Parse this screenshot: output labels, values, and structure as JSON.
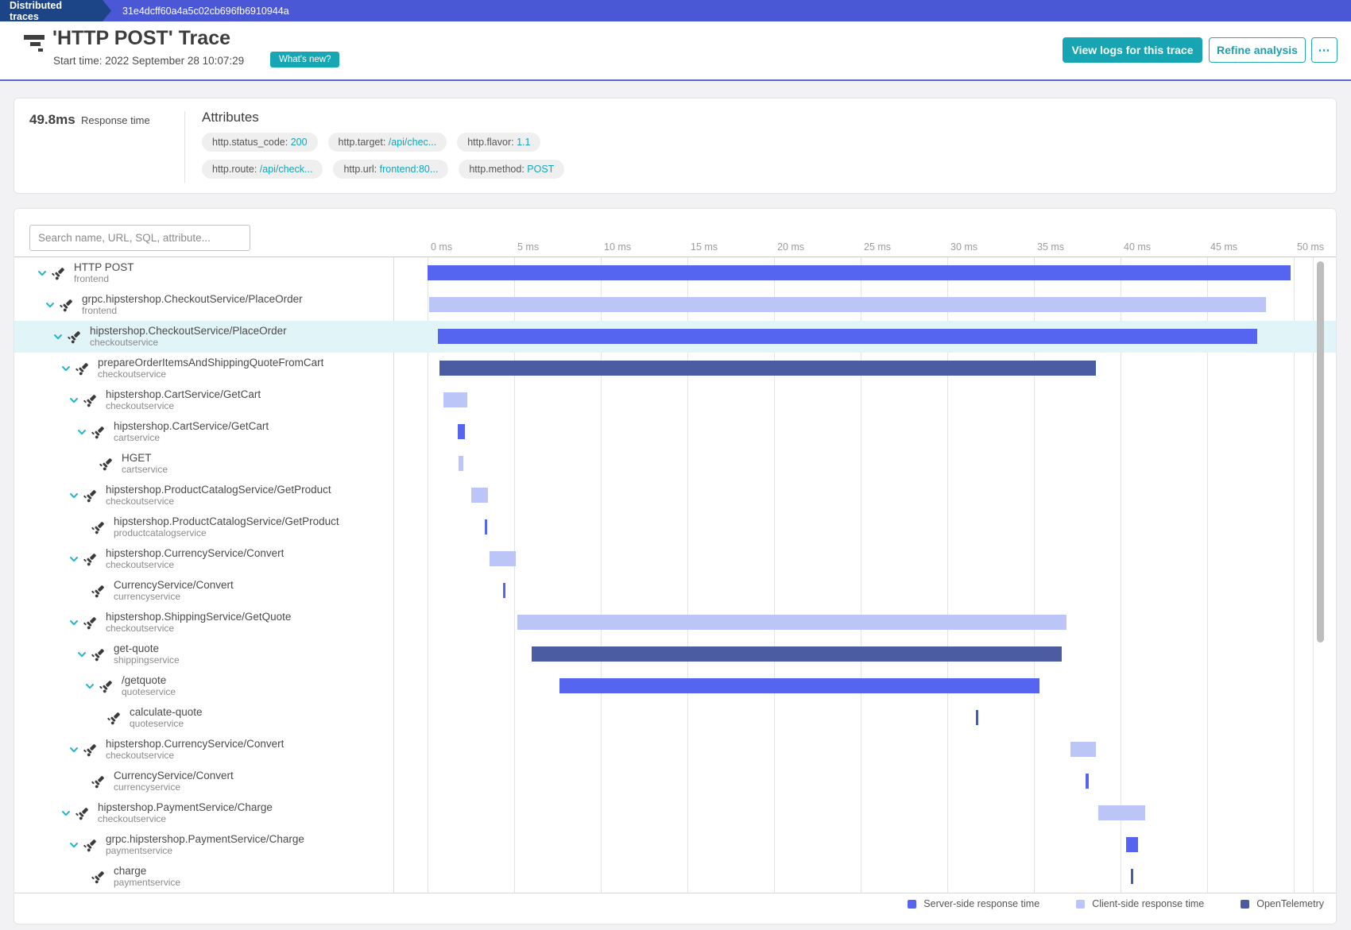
{
  "topbar": {
    "breadcrumb": "Distributed traces",
    "trace_id": "31e4dcff60a4a5c02cb696fb6910944a"
  },
  "header": {
    "title": "'HTTP POST' Trace",
    "start_time": "Start time: 2022 September 28 10:07:29",
    "whats_new_label": "What's new?",
    "view_logs_label": "View logs for this trace",
    "refine_label": "Refine analysis",
    "more_label": "⋯"
  },
  "summary": {
    "response_time": "49.8ms",
    "response_time_label": "Response time",
    "attributes_title": "Attributes",
    "pill_rows": [
      [
        {
          "label": "http.status_code",
          "value": "200"
        },
        {
          "label": "http.target",
          "value": "/api/chec..."
        },
        {
          "label": "http.flavor",
          "value": "1.1"
        }
      ],
      [
        {
          "label": "http.route",
          "value": "/api/check..."
        },
        {
          "label": "http.url",
          "value": "frontend:80..."
        },
        {
          "label": "http.method",
          "value": "POST"
        }
      ]
    ]
  },
  "search": {
    "placeholder": "Search name, URL, SQL, attribute..."
  },
  "chart_data": {
    "type": "gantt",
    "time_unit": "ms",
    "axis_range_ms": [
      0,
      50
    ],
    "axis_ticks": [
      "0 ms",
      "5 ms",
      "10 ms",
      "15 ms",
      "20 ms",
      "25 ms",
      "30 ms",
      "35 ms",
      "40 ms",
      "45 ms",
      "50 ms"
    ],
    "legend": [
      {
        "label": "Server-side response time",
        "kind": "server"
      },
      {
        "label": "Client-side response time",
        "kind": "client"
      },
      {
        "label": "OpenTelemetry",
        "kind": "otel"
      }
    ],
    "spans": [
      {
        "name": "HTTP POST",
        "service": "frontend",
        "level": 0,
        "expandable": true,
        "selected": false,
        "start_ms": 0.0,
        "end_ms": 49.8,
        "kind": "server"
      },
      {
        "name": "grpc.hipstershop.CheckoutService/PlaceOrder",
        "service": "frontend",
        "level": 1,
        "expandable": true,
        "selected": false,
        "start_ms": 0.1,
        "end_ms": 48.4,
        "kind": "client"
      },
      {
        "name": "hipstershop.CheckoutService/PlaceOrder",
        "service": "checkoutservice",
        "level": 2,
        "expandable": true,
        "selected": true,
        "start_ms": 0.6,
        "end_ms": 47.9,
        "kind": "server"
      },
      {
        "name": "prepareOrderItemsAndShippingQuoteFromCart",
        "service": "checkoutservice",
        "level": 3,
        "expandable": true,
        "selected": false,
        "start_ms": 0.7,
        "end_ms": 38.6,
        "kind": "otel"
      },
      {
        "name": "hipstershop.CartService/GetCart",
        "service": "checkoutservice",
        "level": 4,
        "expandable": true,
        "selected": false,
        "start_ms": 0.9,
        "end_ms": 2.3,
        "kind": "client"
      },
      {
        "name": "hipstershop.CartService/GetCart",
        "service": "cartservice",
        "level": 5,
        "expandable": true,
        "selected": false,
        "start_ms": 1.75,
        "end_ms": 2.15,
        "kind": "server"
      },
      {
        "name": "HGET",
        "service": "cartservice",
        "level": 6,
        "expandable": false,
        "selected": false,
        "start_ms": 1.8,
        "end_ms": 2.05,
        "kind": "client"
      },
      {
        "name": "hipstershop.ProductCatalogService/GetProduct",
        "service": "checkoutservice",
        "level": 4,
        "expandable": true,
        "selected": false,
        "start_ms": 2.5,
        "end_ms": 3.5,
        "kind": "client"
      },
      {
        "name": "hipstershop.ProductCatalogService/GetProduct",
        "service": "productcatalogservice",
        "level": 5,
        "expandable": false,
        "selected": false,
        "start_ms": 3.3,
        "end_ms": 3.42,
        "kind": "server"
      },
      {
        "name": "hipstershop.CurrencyService/Convert",
        "service": "checkoutservice",
        "level": 4,
        "expandable": true,
        "selected": false,
        "start_ms": 3.6,
        "end_ms": 5.1,
        "kind": "client"
      },
      {
        "name": "CurrencyService/Convert",
        "service": "currencyservice",
        "level": 5,
        "expandable": false,
        "selected": false,
        "start_ms": 4.35,
        "end_ms": 4.5,
        "kind": "server"
      },
      {
        "name": "hipstershop.ShippingService/GetQuote",
        "service": "checkoutservice",
        "level": 4,
        "expandable": true,
        "selected": false,
        "start_ms": 5.2,
        "end_ms": 36.9,
        "kind": "client"
      },
      {
        "name": "get-quote",
        "service": "shippingservice",
        "level": 5,
        "expandable": true,
        "selected": false,
        "start_ms": 6.0,
        "end_ms": 36.6,
        "kind": "otel"
      },
      {
        "name": "/getquote",
        "service": "quoteservice",
        "level": 6,
        "expandable": true,
        "selected": false,
        "start_ms": 7.6,
        "end_ms": 35.3,
        "kind": "server"
      },
      {
        "name": "calculate-quote",
        "service": "quoteservice",
        "level": 7,
        "expandable": false,
        "selected": false,
        "start_ms": 31.65,
        "end_ms": 31.8,
        "kind": "otel"
      },
      {
        "name": "hipstershop.CurrencyService/Convert",
        "service": "checkoutservice",
        "level": 4,
        "expandable": true,
        "selected": false,
        "start_ms": 37.1,
        "end_ms": 38.6,
        "kind": "client"
      },
      {
        "name": "CurrencyService/Convert",
        "service": "currencyservice",
        "level": 5,
        "expandable": false,
        "selected": false,
        "start_ms": 38.0,
        "end_ms": 38.15,
        "kind": "server"
      },
      {
        "name": "hipstershop.PaymentService/Charge",
        "service": "checkoutservice",
        "level": 3,
        "expandable": true,
        "selected": false,
        "start_ms": 38.7,
        "end_ms": 41.4,
        "kind": "client"
      },
      {
        "name": "grpc.hipstershop.PaymentService/Charge",
        "service": "paymentservice",
        "level": 4,
        "expandable": true,
        "selected": false,
        "start_ms": 40.3,
        "end_ms": 41.0,
        "kind": "server"
      },
      {
        "name": "charge",
        "service": "paymentservice",
        "level": 5,
        "expandable": false,
        "selected": false,
        "start_ms": 40.6,
        "end_ms": 40.75,
        "kind": "otel"
      }
    ]
  },
  "colors": {
    "server": "#5565ef",
    "client": "#bcc5f8",
    "otel": "#4c5ca3",
    "selected_row": "#e1f4f8",
    "accent_teal": "#17a5b3",
    "chevron_teal": "#27b4c7"
  }
}
